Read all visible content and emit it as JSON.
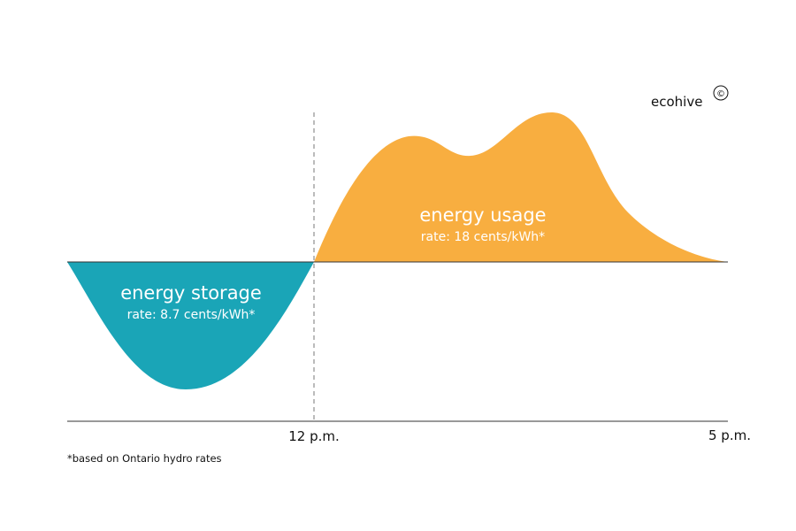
{
  "brand": {
    "name": "ecohive",
    "mark": "©"
  },
  "footnote": "*based on Ontario hydro rates",
  "colors": {
    "storage": "#1aa5b7",
    "usage": "#f8ae40",
    "axis": "#333333",
    "divider": "#777777"
  },
  "chart_data": {
    "type": "area",
    "title": "",
    "xlabel": "",
    "ylabel": "",
    "x_ticks": [
      "12 p.m.",
      "5 p.m."
    ],
    "grid": false,
    "legend": "none",
    "divider_at": "12 p.m.",
    "series": [
      {
        "name": "energy storage",
        "label": "energy storage",
        "rate": "rate: 8.7 cents/kWh*",
        "color": "#1aa5b7",
        "sign": "negative"
      },
      {
        "name": "energy usage",
        "label": "energy usage",
        "rate": "rate: 18 cents/kWh*",
        "color": "#f8ae40",
        "sign": "positive"
      }
    ]
  }
}
